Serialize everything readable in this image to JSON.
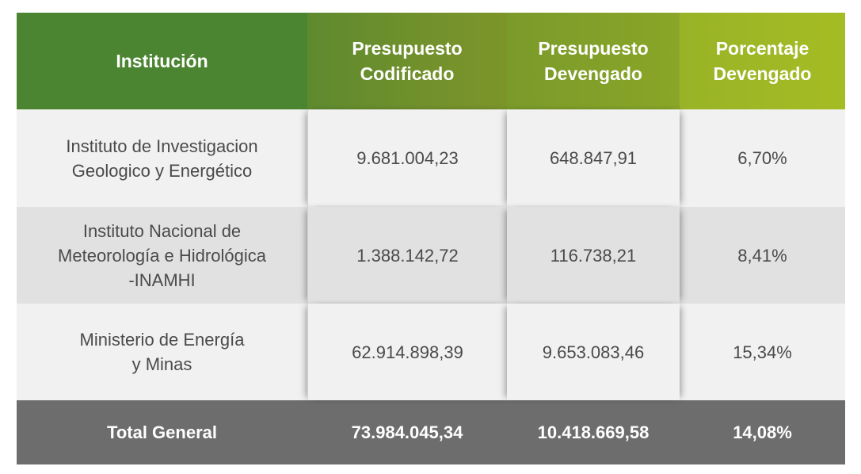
{
  "table": {
    "headers": [
      "Institución",
      "Presupuesto\nCodificado",
      "Presupuesto\nDevengado",
      "Porcentaje\nDevengado"
    ],
    "rows": [
      {
        "institucion": "Instituto de Investigacion\nGeologico y Energético",
        "codificado": "9.681.004,23",
        "devengado": "648.847,91",
        "porcentaje": "6,70%"
      },
      {
        "institucion": "Instituto Nacional de\nMeteorología e Hidrológica\n-INAMHI",
        "codificado": "1.388.142,72",
        "devengado": "116.738,21",
        "porcentaje": "8,41%"
      },
      {
        "institucion": "Ministerio de Energía\ny Minas",
        "codificado": "62.914.898,39",
        "devengado": "9.653.083,46",
        "porcentaje": "15,34%"
      }
    ],
    "total": {
      "label": "Total General",
      "codificado": "73.984.045,34",
      "devengado": "10.418.669,58",
      "porcentaje": "14,08%"
    }
  },
  "colors": {
    "header_dark_green": "#4c8531",
    "header_mid_green": "#72912c",
    "header_olive": "#8aa628",
    "header_lime": "#a5bc24",
    "row_light": "#f1f1f1",
    "row_alt": "#e1e1e1",
    "total_bg": "#6d6d6d"
  }
}
